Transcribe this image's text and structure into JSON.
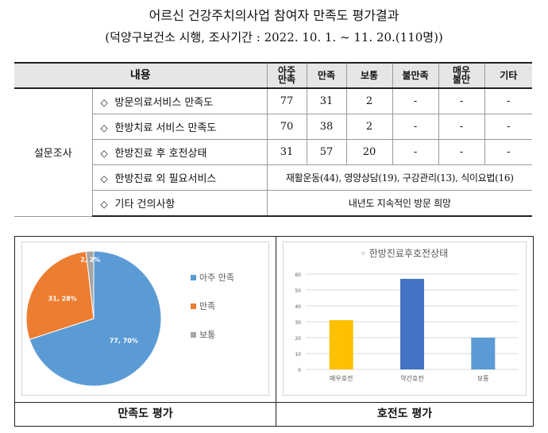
{
  "title": "어르신 건강주치의사업 참여자 만족도 평가결과",
  "subtitle": "(덕양구보건소 시행, 조사기간 : 2022. 10. 1. ~ 11. 20.(110명))",
  "table": {
    "headers": {
      "content": "내용",
      "very_satisfied": "아주\n만족",
      "satisfied": "만족",
      "normal": "보통",
      "dissatisfied": "불만족",
      "very_dissatisfied": "매우\n불만",
      "other": "기타"
    },
    "category": "설문조사",
    "bullet": "◇",
    "rows": [
      {
        "item": "방문의료서비스 만족도",
        "values": [
          "77",
          "31",
          "2",
          "-",
          "-",
          "-"
        ]
      },
      {
        "item": "한방치료 서비스 만족도",
        "values": [
          "70",
          "38",
          "2",
          "-",
          "-",
          "-"
        ]
      },
      {
        "item": "한방진료 후 호전상태",
        "values": [
          "31",
          "57",
          "20",
          "-",
          "-",
          "-"
        ]
      },
      {
        "item": "한방진료 외 필요서비스",
        "span_text": "재활운동(44), 영양상담(19), 구강관리(13), 식이요법(16)"
      },
      {
        "item": "기타 건의사항",
        "span_text": "내년도 지속적인 방문 희망"
      }
    ]
  },
  "captions": {
    "left": "만족도 평가",
    "right": "호전도 평가"
  },
  "chart_data": [
    {
      "type": "pie",
      "labels": [
        "아주 만족",
        "만족",
        "보통"
      ],
      "values": [
        77,
        31,
        2
      ],
      "data_labels": [
        "77, 70%",
        "31, 28%",
        "2, 2%"
      ],
      "colors": [
        "#5b9bd5",
        "#ed7d31",
        "#a5a5a5"
      ],
      "legend_position": "right"
    },
    {
      "type": "bar",
      "title": "한방진료후호전상태",
      "categories": [
        "매우호전",
        "약간호전",
        "보통"
      ],
      "values": [
        31,
        57,
        20
      ],
      "colors": [
        "#ffc000",
        "#4472c4",
        "#5b9bd5"
      ],
      "ylim": [
        0,
        60
      ],
      "yticks": [
        "0",
        "10",
        "20",
        "30",
        "40",
        "50",
        "60"
      ],
      "grid": true
    }
  ]
}
